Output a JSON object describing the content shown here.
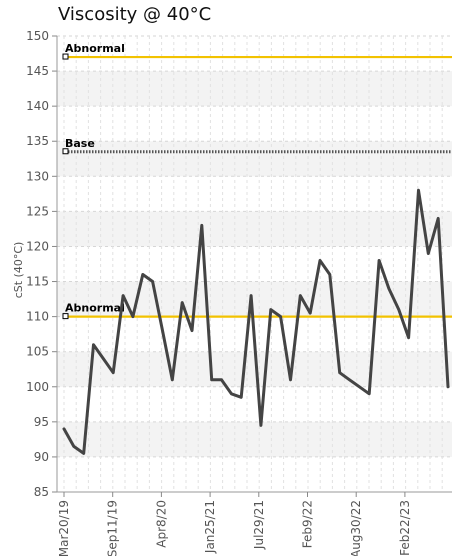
{
  "chart_data": {
    "type": "line",
    "title": "Viscosity @ 40°C",
    "ylabel": "cSt (40°C)",
    "xlabel": "",
    "ylim": [
      85,
      150
    ],
    "yticks": [
      85,
      90,
      95,
      100,
      105,
      110,
      115,
      120,
      125,
      130,
      135,
      140,
      145,
      150
    ],
    "x_tick_labels": [
      "Mar20/19",
      "Sep11/19",
      "Apr8/20",
      "Jan25/21",
      "Jul29/21",
      "Feb9/22",
      "Aug30/22",
      "Feb22/23"
    ],
    "grid": true,
    "series": [
      {
        "values": [
          94,
          91.5,
          90.5,
          106,
          104,
          102,
          113,
          110,
          116,
          115,
          108,
          101,
          112,
          108,
          123,
          101,
          101,
          99,
          98.5,
          113,
          94.5,
          111,
          110,
          101,
          113,
          110.5,
          118,
          116,
          102,
          101,
          100,
          99,
          118,
          114,
          111,
          107,
          128,
          119,
          124,
          100
        ],
        "color": "#444444"
      }
    ],
    "reference_lines": [
      {
        "label": "Abnormal",
        "value": 147,
        "color": "#f2c200",
        "style": "solid"
      },
      {
        "label": "Base",
        "value": 133.5,
        "color": "#555555",
        "style": "dotted"
      },
      {
        "label": "Abnormal",
        "value": 110,
        "color": "#f2c200",
        "style": "solid"
      }
    ]
  }
}
